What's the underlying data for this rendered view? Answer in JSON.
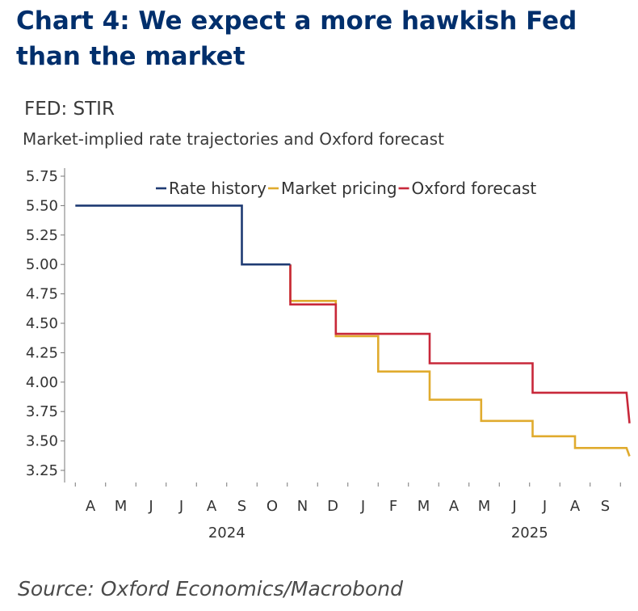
{
  "headline": "Chart 4: We expect a more hawkish Fed than the market",
  "source": "Source: Oxford Economics/Macrobond",
  "colors": {
    "rate_history": "#1f3b73",
    "market_pricing": "#e0ab2e",
    "oxford_forecast": "#c8283a",
    "axis": "#777777"
  },
  "chart_data": {
    "type": "line",
    "step": true,
    "title": "FED: STIR",
    "subtitle": "Market-implied rate trajectories and Oxford forecast",
    "xlabel": "",
    "ylabel": "",
    "ylim": [
      3.25,
      5.75
    ],
    "yticks": [
      "5.75",
      "5.50",
      "5.25",
      "5.00",
      "4.75",
      "4.50",
      "4.25",
      "4.00",
      "3.75",
      "3.50",
      "3.25"
    ],
    "x_unit": "month index (0 = Apr 2024)",
    "xlim": [
      -0.5,
      17.8
    ],
    "month_ticks": [
      "A",
      "M",
      "J",
      "J",
      "A",
      "S",
      "O",
      "N",
      "D",
      "J",
      "F",
      "M",
      "A",
      "M",
      "J",
      "J",
      "A",
      "S"
    ],
    "year_labels": [
      {
        "label": "2024",
        "center": 4.5
      },
      {
        "label": "2025",
        "center": 14.5
      }
    ],
    "legend": {
      "position": "top",
      "entries": [
        "Rate history",
        "Market pricing",
        "Oxford forecast"
      ]
    },
    "series": [
      {
        "name": "Rate history",
        "color_key": "rate_history",
        "points": [
          [
            -0.5,
            5.5
          ],
          [
            5.0,
            5.5
          ],
          [
            5.0,
            5.0
          ],
          [
            6.6,
            5.0
          ]
        ]
      },
      {
        "name": "Market pricing",
        "color_key": "market_pricing",
        "points": [
          [
            6.6,
            5.0
          ],
          [
            6.6,
            4.69
          ],
          [
            8.1,
            4.69
          ],
          [
            8.1,
            4.39
          ],
          [
            9.5,
            4.39
          ],
          [
            9.5,
            4.09
          ],
          [
            11.2,
            4.09
          ],
          [
            11.2,
            3.85
          ],
          [
            12.9,
            3.85
          ],
          [
            12.9,
            3.67
          ],
          [
            14.6,
            3.67
          ],
          [
            14.6,
            3.54
          ],
          [
            16.0,
            3.54
          ],
          [
            16.0,
            3.44
          ],
          [
            17.7,
            3.44
          ],
          [
            17.8,
            3.37
          ]
        ]
      },
      {
        "name": "Oxford forecast",
        "color_key": "oxford_forecast",
        "points": [
          [
            6.6,
            5.0
          ],
          [
            6.6,
            4.66
          ],
          [
            8.1,
            4.66
          ],
          [
            8.1,
            4.41
          ],
          [
            11.2,
            4.41
          ],
          [
            11.2,
            4.16
          ],
          [
            14.6,
            4.16
          ],
          [
            14.6,
            3.91
          ],
          [
            17.7,
            3.91
          ],
          [
            17.8,
            3.65
          ]
        ]
      }
    ]
  }
}
